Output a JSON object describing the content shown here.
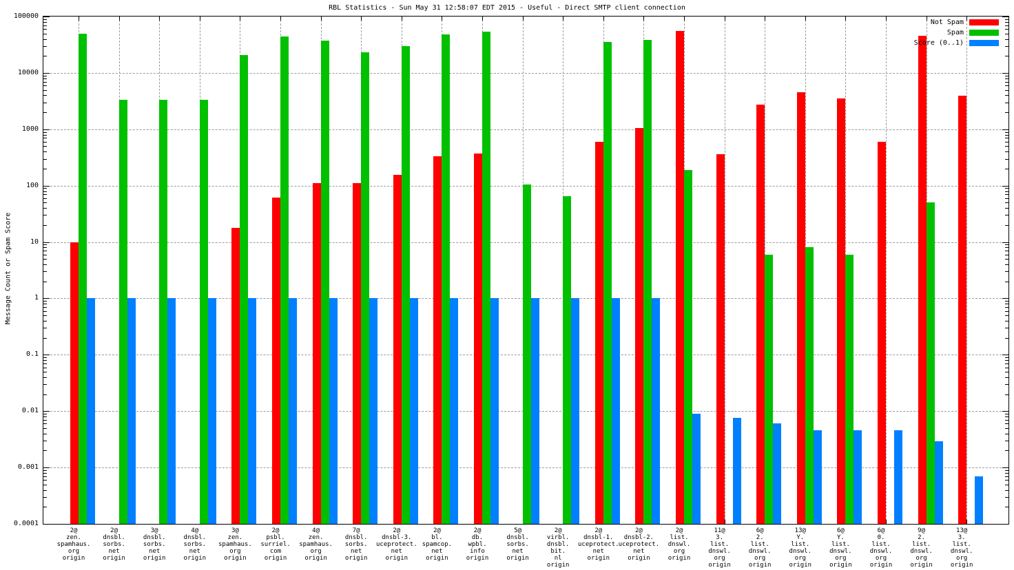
{
  "chart_data": {
    "type": "bar",
    "scale": "log-y",
    "title": "RBL Statistics - Sun May 31 12:58:07 EDT 2015 - Useful - Direct SMTP client connection",
    "xlabel": "",
    "ylabel": "Message Count or Spam Score",
    "ylim": [
      0.0001,
      100000
    ],
    "grid": true,
    "legend_position": "top-right",
    "yticks": [
      "100000",
      "10000",
      "1000",
      "100",
      "10",
      "1",
      "0.1",
      "0.01",
      "0.001",
      "0.0001"
    ],
    "legend": [
      {
        "name": "Not Spam",
        "color": "#ff0000"
      },
      {
        "name": "Spam",
        "color": "#00c000"
      },
      {
        "name": "Score (0..1)",
        "color": "#0080ff"
      }
    ],
    "categories": [
      [
        "2@",
        "zen.",
        "spamhaus.",
        "org",
        "origin"
      ],
      [
        "2@",
        "dnsbl.",
        "sorbs.",
        "net",
        "origin"
      ],
      [
        "3@",
        "dnsbl.",
        "sorbs.",
        "net",
        "origin"
      ],
      [
        "4@",
        "dnsbl.",
        "sorbs.",
        "net",
        "origin"
      ],
      [
        "3@",
        "zen.",
        "spamhaus.",
        "org",
        "origin"
      ],
      [
        "2@",
        "psbl.",
        "surriel.",
        "com",
        "origin"
      ],
      [
        "4@",
        "zen.",
        "spamhaus.",
        "org",
        "origin"
      ],
      [
        "7@",
        "dnsbl.",
        "sorbs.",
        "net",
        "origin"
      ],
      [
        "2@",
        "dnsbl-3.",
        "uceprotect.",
        "net",
        "origin"
      ],
      [
        "2@",
        "bl.",
        "spamcop.",
        "net",
        "origin"
      ],
      [
        "2@",
        "db.",
        "wpbl.",
        "info",
        "origin"
      ],
      [
        "5@",
        "dnsbl.",
        "sorbs.",
        "net",
        "origin"
      ],
      [
        "2@",
        "virbl.",
        "dnsbl.",
        "bit.",
        "nl",
        "origin"
      ],
      [
        "2@",
        "dnsbl-1.",
        "uceprotect.",
        "net",
        "origin"
      ],
      [
        "2@",
        "dnsbl-2.",
        "uceprotect.",
        "net",
        "origin"
      ],
      [
        "2@",
        "list.",
        "dnswl.",
        "org",
        "origin"
      ],
      [
        "11@",
        "3.",
        "list.",
        "dnswl.",
        "org",
        "origin"
      ],
      [
        "6@",
        "2.",
        "list.",
        "dnswl.",
        "org",
        "origin"
      ],
      [
        "13@",
        "Y.",
        "list.",
        "dnswl.",
        "org",
        "origin"
      ],
      [
        "6@",
        "Y.",
        "list.",
        "dnswl.",
        "org",
        "origin"
      ],
      [
        "6@",
        "0.",
        "list.",
        "dnswl.",
        "org",
        "origin"
      ],
      [
        "9@",
        "2.",
        "list.",
        "dnswl.",
        "org",
        "origin"
      ],
      [
        "13@",
        "3.",
        "list.",
        "dnswl.",
        "org",
        "origin"
      ]
    ],
    "series": [
      {
        "name": "Not Spam",
        "key": "not-spam",
        "color": "#ff0000",
        "values": [
          10,
          null,
          null,
          null,
          18,
          62,
          110,
          110,
          155,
          330,
          370,
          null,
          null,
          600,
          1050,
          56000,
          360,
          2700,
          4600,
          3500,
          600,
          46000,
          3900
        ]
      },
      {
        "name": "Spam",
        "key": "spam",
        "color": "#00c000",
        "values": [
          50000,
          3300,
          3300,
          3300,
          21000,
          44000,
          37000,
          23000,
          30000,
          48000,
          54000,
          105,
          65,
          35000,
          38000,
          190,
          null,
          6,
          8,
          6,
          null,
          50,
          null
        ]
      },
      {
        "name": "Score (0..1)",
        "key": "score",
        "color": "#0080ff",
        "values": [
          1,
          1,
          1,
          1,
          1,
          1,
          1,
          1,
          1,
          1,
          1,
          1,
          1,
          1,
          1,
          0.009,
          0.0075,
          0.006,
          0.0046,
          0.0046,
          0.0046,
          0.0029,
          0.0007
        ]
      }
    ]
  }
}
